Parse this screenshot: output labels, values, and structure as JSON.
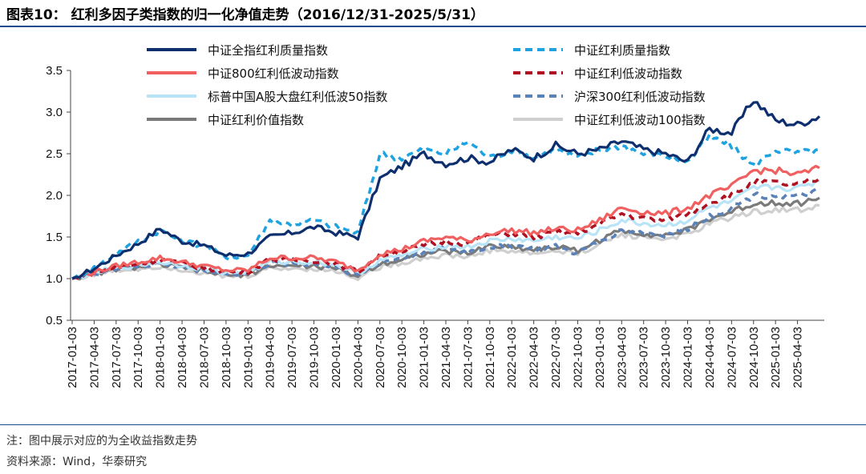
{
  "header": {
    "title": "图表10：  红利多因子类指数的归一化净值走势（2016/12/31-2025/5/31）"
  },
  "footer": {
    "note": "注：图中展示对应的为全收益指数走势",
    "source": "资料来源：Wind，华泰研究"
  },
  "chart_data": {
    "type": "line",
    "title": "红利多因子类指数的归一化净值走势（2016/12/31-2025/5/31）",
    "xlabel": "",
    "ylabel": "",
    "ylim": [
      0.5,
      3.5
    ],
    "yticks": [
      "0.5",
      "1.0",
      "1.5",
      "2.0",
      "2.5",
      "3.0",
      "3.5"
    ],
    "x": [
      "2017-01-03",
      "2017-04-03",
      "2017-07-03",
      "2017-10-03",
      "2018-01-03",
      "2018-04-03",
      "2018-07-03",
      "2018-10-03",
      "2019-01-03",
      "2019-04-03",
      "2019-07-03",
      "2019-10-03",
      "2020-01-03",
      "2020-04-03",
      "2020-07-03",
      "2020-10-03",
      "2021-01-03",
      "2021-04-03",
      "2021-07-03",
      "2021-10-03",
      "2022-01-03",
      "2022-04-03",
      "2022-07-03",
      "2022-10-03",
      "2023-01-03",
      "2023-04-03",
      "2023-07-03",
      "2023-10-03",
      "2024-01-03",
      "2024-04-03",
      "2024-07-03",
      "2024-10-03",
      "2025-01-03",
      "2025-04-03",
      "2025-05-30"
    ],
    "legend_position": "top",
    "series": [
      {
        "name": "中证全指红利质量指数",
        "color": "#0d2f6e",
        "style": "solid",
        "values": [
          1.0,
          1.12,
          1.28,
          1.42,
          1.6,
          1.45,
          1.4,
          1.28,
          1.3,
          1.5,
          1.55,
          1.62,
          1.55,
          1.5,
          2.2,
          2.35,
          2.5,
          2.38,
          2.45,
          2.4,
          2.55,
          2.45,
          2.6,
          2.5,
          2.55,
          2.65,
          2.55,
          2.5,
          2.4,
          2.8,
          2.75,
          3.15,
          2.9,
          2.85,
          2.95
        ]
      },
      {
        "name": "中证红利质量指数",
        "color": "#1fa3e0",
        "style": "dashed",
        "values": [
          1.0,
          1.13,
          1.3,
          1.45,
          1.58,
          1.45,
          1.4,
          1.25,
          1.28,
          1.7,
          1.65,
          1.7,
          1.62,
          1.55,
          2.5,
          2.45,
          2.55,
          2.5,
          2.65,
          2.45,
          2.55,
          2.45,
          2.55,
          2.45,
          2.55,
          2.6,
          2.5,
          2.48,
          2.4,
          2.7,
          2.6,
          2.35,
          2.55,
          2.5,
          2.55
        ]
      },
      {
        "name": "中证800红利低波动指数",
        "color": "#f06060",
        "style": "solid",
        "values": [
          1.0,
          1.08,
          1.15,
          1.2,
          1.25,
          1.2,
          1.15,
          1.1,
          1.1,
          1.25,
          1.25,
          1.25,
          1.2,
          1.1,
          1.3,
          1.35,
          1.45,
          1.5,
          1.45,
          1.55,
          1.58,
          1.55,
          1.6,
          1.58,
          1.7,
          1.85,
          1.8,
          1.78,
          1.85,
          2.0,
          2.1,
          2.3,
          2.3,
          2.25,
          2.33
        ]
      },
      {
        "name": "中证红利低波动指数",
        "color": "#b01020",
        "style": "dashed",
        "values": [
          1.0,
          1.07,
          1.14,
          1.18,
          1.23,
          1.18,
          1.13,
          1.08,
          1.09,
          1.23,
          1.22,
          1.22,
          1.18,
          1.08,
          1.28,
          1.33,
          1.4,
          1.45,
          1.42,
          1.52,
          1.55,
          1.5,
          1.55,
          1.55,
          1.65,
          1.78,
          1.72,
          1.7,
          1.78,
          1.92,
          2.0,
          2.15,
          2.15,
          2.12,
          2.2
        ]
      },
      {
        "name": "标普中国A股大盘红利低波50指数",
        "color": "#b9e3f6",
        "style": "solid",
        "values": [
          1.0,
          1.07,
          1.13,
          1.16,
          1.2,
          1.16,
          1.12,
          1.07,
          1.08,
          1.2,
          1.2,
          1.2,
          1.17,
          1.06,
          1.22,
          1.28,
          1.35,
          1.4,
          1.38,
          1.45,
          1.48,
          1.45,
          1.5,
          1.48,
          1.58,
          1.7,
          1.66,
          1.64,
          1.7,
          1.85,
          1.92,
          2.08,
          2.1,
          2.08,
          2.18
        ]
      },
      {
        "name": "沪深300红利低波动指数",
        "color": "#5a82b8",
        "style": "dashed",
        "values": [
          1.0,
          1.06,
          1.12,
          1.15,
          1.18,
          1.14,
          1.1,
          1.05,
          1.06,
          1.18,
          1.18,
          1.17,
          1.14,
          1.04,
          1.2,
          1.25,
          1.32,
          1.36,
          1.32,
          1.38,
          1.4,
          1.36,
          1.38,
          1.3,
          1.45,
          1.58,
          1.55,
          1.52,
          1.6,
          1.75,
          1.85,
          2.0,
          2.0,
          1.98,
          2.05
        ]
      },
      {
        "name": "中证红利价值指数",
        "color": "#7a7a7a",
        "style": "solid",
        "values": [
          1.0,
          1.06,
          1.11,
          1.14,
          1.17,
          1.13,
          1.09,
          1.04,
          1.05,
          1.16,
          1.15,
          1.15,
          1.12,
          1.03,
          1.18,
          1.23,
          1.3,
          1.33,
          1.3,
          1.4,
          1.38,
          1.35,
          1.38,
          1.34,
          1.46,
          1.58,
          1.54,
          1.52,
          1.58,
          1.72,
          1.8,
          1.9,
          1.92,
          1.9,
          1.97
        ]
      },
      {
        "name": "中证红利低波动100指数",
        "color": "#cfcfcf",
        "style": "solid",
        "values": [
          1.0,
          1.05,
          1.1,
          1.12,
          1.15,
          1.11,
          1.07,
          1.02,
          1.03,
          1.13,
          1.12,
          1.12,
          1.09,
          1.01,
          1.14,
          1.19,
          1.25,
          1.28,
          1.26,
          1.34,
          1.33,
          1.3,
          1.33,
          1.3,
          1.42,
          1.53,
          1.5,
          1.48,
          1.53,
          1.66,
          1.74,
          1.8,
          1.83,
          1.82,
          1.88
        ]
      }
    ]
  }
}
